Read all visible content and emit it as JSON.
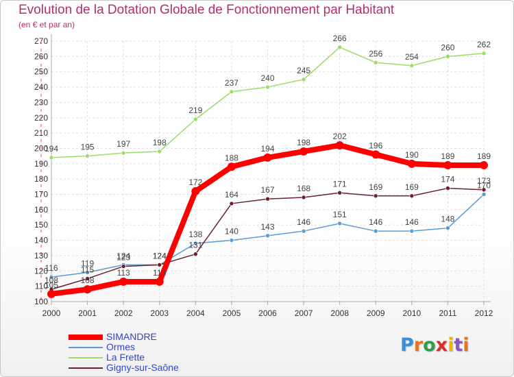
{
  "title": "Evolution de la Dotation Globale de Fonctionnement par Habitant",
  "subtitle": "(en € et par an)",
  "logo": {
    "letters": [
      "P",
      "r",
      "o",
      "x",
      "i",
      "t",
      "i"
    ],
    "colors": [
      "#3a8fd6",
      "#e8731f",
      "#2e9e4a",
      "#e02828",
      "#f0b400",
      "#8a55c9",
      "#e8731f"
    ]
  },
  "colors": {
    "SIMANDRE": "#ff0000",
    "Ormes": "#5a9bd4",
    "La Frette": "#99dd66",
    "Gigny-sur-Saône": "#6b1f2a",
    "axis": "#aaaaaa",
    "grid": "#dddddd",
    "text": "#333333"
  },
  "chart_data": {
    "type": "line",
    "title": "Evolution de la Dotation Globale de Fonctionnement par Habitant",
    "subtitle": "(en € et par an)",
    "xlabel": "",
    "ylabel": "",
    "ylim": [
      100,
      270
    ],
    "yticks": [
      100,
      110,
      120,
      130,
      140,
      150,
      160,
      170,
      180,
      190,
      200,
      210,
      220,
      230,
      240,
      250,
      260,
      270
    ],
    "x": [
      "2000",
      "2001",
      "2002",
      "2003",
      "2004",
      "2005",
      "2006",
      "2007",
      "2008",
      "2009",
      "2010",
      "2011",
      "2012"
    ],
    "grid": "horizontal dashed",
    "legend_position": "bottom-left",
    "series": [
      {
        "name": "SIMANDRE",
        "values": [
          105,
          108,
          113,
          113,
          172,
          188,
          194,
          198,
          202,
          196,
          190,
          189,
          189
        ]
      },
      {
        "name": "Ormes",
        "values": [
          116,
          119,
          124,
          124,
          138,
          140,
          143,
          146,
          151,
          146,
          146,
          148,
          170
        ]
      },
      {
        "name": "La Frette",
        "values": [
          194,
          195,
          197,
          198,
          219,
          237,
          240,
          245,
          266,
          256,
          254,
          260,
          262
        ]
      },
      {
        "name": "Gigny-sur-Saône",
        "values": [
          108,
          115,
          123,
          124,
          131,
          164,
          167,
          168,
          171,
          169,
          169,
          174,
          173
        ]
      }
    ]
  }
}
